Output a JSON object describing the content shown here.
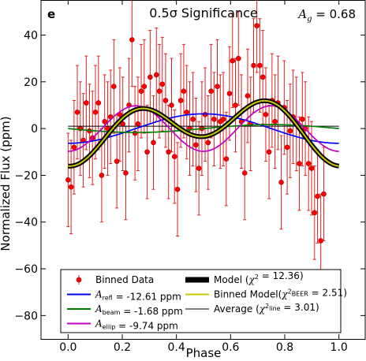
{
  "chart_data": {
    "type": "scatter",
    "panel_label": "e",
    "title": "0.5σ Significance",
    "annotation": {
      "symbol": "A",
      "subscript": "g",
      "value": " = 0.68"
    },
    "xlabel": "Phase",
    "ylabel": "Normalized Flux (ppm)",
    "xlim": [
      -0.1,
      1.1
    ],
    "ylim": [
      -90,
      55
    ],
    "xticks": [
      0.0,
      0.2,
      0.4,
      0.6,
      0.8,
      1.0
    ],
    "yticks": [
      -80,
      -60,
      -40,
      -20,
      0,
      20,
      40
    ],
    "xtick_labels": [
      "0.0",
      "0.2",
      "0.4",
      "0.6",
      "0.8",
      "1.0"
    ],
    "ytick_labels": [
      "−80",
      "−60",
      "−40",
      "−20",
      "0",
      "20",
      "40"
    ],
    "legend_position": "bottom",
    "model_params": {
      "refl_amplitude": -12.61,
      "beam_amplitude": -1.68,
      "ellip_amplitude": -9.74,
      "chi2_model": 12.36,
      "chi2_beer": 2.51,
      "chi2_line": 3.01,
      "average_level": 1.0
    },
    "legend": [
      {
        "key": "binned_data",
        "parts": [
          {
            "t": "Binned Data"
          }
        ],
        "color": "#ff0000"
      },
      {
        "key": "refl",
        "parts": [
          {
            "t": "A",
            "i": true
          },
          {
            "t": "refl",
            "sub": true
          },
          {
            "t": " = -12.61 ppm"
          }
        ],
        "color": "#0000ff"
      },
      {
        "key": "beam",
        "parts": [
          {
            "t": "A",
            "i": true
          },
          {
            "t": "beam",
            "sub": true
          },
          {
            "t": " = -1.68 ppm"
          }
        ],
        "color": "#008000"
      },
      {
        "key": "ellip",
        "parts": [
          {
            "t": "A",
            "i": true
          },
          {
            "t": "ellip",
            "sub": true
          },
          {
            "t": " = -9.74 ppm"
          }
        ],
        "color": "#c000c0"
      },
      {
        "key": "model",
        "parts": [
          {
            "t": "Model ("
          },
          {
            "t": "χ",
            "i": true
          },
          {
            "t": "2",
            "sup": true
          },
          {
            "t": " = 12.36)"
          }
        ],
        "color": "#000000"
      },
      {
        "key": "binned_model",
        "parts": [
          {
            "t": "Binned Model("
          },
          {
            "t": "χ",
            "i": true
          },
          {
            "t": "2",
            "sup": true
          },
          {
            "t": "BEER",
            "sub": true
          },
          {
            "t": " =  2.51)"
          }
        ],
        "color": "#c8c800"
      },
      {
        "key": "average",
        "parts": [
          {
            "t": "Average ("
          },
          {
            "t": "χ",
            "i": true
          },
          {
            "t": "2",
            "sup": true
          },
          {
            "t": "line",
            "sub": true
          },
          {
            "t": " =  3.01)"
          }
        ],
        "color": "#000000"
      }
    ],
    "series": [
      {
        "name": "Binned Data",
        "color": "#ff0000",
        "x": [
          0.0,
          0.011,
          0.022,
          0.034,
          0.045,
          0.056,
          0.067,
          0.079,
          0.09,
          0.101,
          0.112,
          0.124,
          0.135,
          0.146,
          0.157,
          0.169,
          0.18,
          0.191,
          0.202,
          0.213,
          0.225,
          0.236,
          0.247,
          0.258,
          0.27,
          0.281,
          0.292,
          0.303,
          0.315,
          0.326,
          0.337,
          0.348,
          0.36,
          0.371,
          0.382,
          0.393,
          0.404,
          0.416,
          0.427,
          0.438,
          0.449,
          0.461,
          0.472,
          0.483,
          0.494,
          0.506,
          0.517,
          0.528,
          0.539,
          0.551,
          0.562,
          0.573,
          0.584,
          0.596,
          0.607,
          0.618,
          0.629,
          0.64,
          0.652,
          0.663,
          0.674,
          0.685,
          0.697,
          0.708,
          0.719,
          0.73,
          0.742,
          0.753,
          0.764,
          0.775,
          0.787,
          0.798,
          0.809,
          0.82,
          0.831,
          0.843,
          0.854,
          0.865,
          0.876,
          0.888,
          0.899,
          0.91,
          0.921,
          0.933,
          0.944
        ],
        "y": [
          -22,
          -25,
          -8,
          7,
          0,
          -5,
          11,
          -1,
          -4,
          7,
          11,
          -20,
          3,
          0,
          5,
          18,
          -14,
          6,
          2,
          -19,
          10,
          38,
          -2,
          2,
          16,
          18,
          -10,
          22,
          -6,
          23,
          16,
          19,
          12,
          -10,
          10,
          -12,
          -26,
          12,
          16,
          7,
          0,
          4,
          -7,
          -17,
          0,
          6,
          -6,
          16,
          4,
          18,
          3,
          4,
          -13,
          15,
          29,
          10,
          30,
          3,
          -19,
          14,
          2,
          27,
          44,
          27,
          22,
          6,
          -10,
          12,
          3,
          11,
          -23,
          9,
          -8,
          -1,
          5,
          2,
          -15,
          4,
          0,
          -15,
          -17,
          -36,
          -29,
          -48,
          -28
        ],
        "err": [
          20,
          20,
          20,
          20,
          20,
          20,
          20,
          20,
          20,
          20,
          20,
          20,
          20,
          20,
          20,
          20,
          20,
          20,
          20,
          20,
          20,
          20,
          20,
          20,
          20,
          20,
          20,
          20,
          20,
          20,
          20,
          20,
          20,
          20,
          20,
          20,
          20,
          20,
          20,
          20,
          20,
          20,
          20,
          20,
          20,
          20,
          20,
          20,
          20,
          20,
          20,
          20,
          20,
          20,
          20,
          20,
          20,
          20,
          20,
          20,
          20,
          20,
          20,
          20,
          20,
          20,
          20,
          20,
          20,
          20,
          20,
          20,
          20,
          20,
          20,
          20,
          20,
          20,
          20,
          20,
          20,
          20,
          20,
          20,
          20
        ]
      }
    ]
  }
}
